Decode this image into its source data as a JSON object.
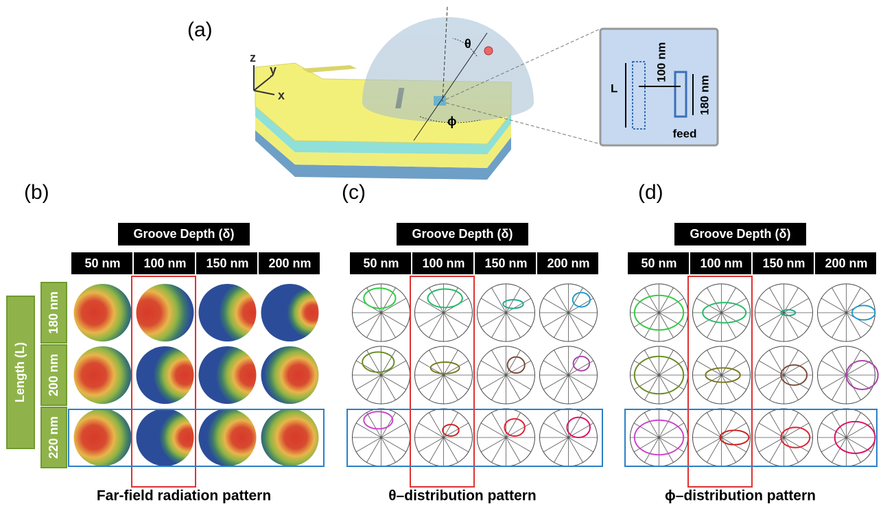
{
  "panel_a": {
    "label": "(a)",
    "axes": [
      "z",
      "y",
      "x"
    ],
    "theta": "θ",
    "phi": "ϕ",
    "inset": {
      "length": "L",
      "gap": "100 nm",
      "feed_length": "180 nm",
      "feed": "feed"
    }
  },
  "panels": [
    {
      "label": "(b)",
      "header": "Groove Depth (δ)",
      "columns": [
        "50 nm",
        "100 nm",
        "150 nm",
        "200 nm"
      ],
      "caption": "Far-field radiation pattern"
    },
    {
      "label": "(c)",
      "header": "Groove Depth (δ)",
      "columns": [
        "50 nm",
        "100 nm",
        "150 nm",
        "200 nm"
      ],
      "caption": "θ–distribution pattern"
    },
    {
      "label": "(d)",
      "header": "Groove Depth (δ)",
      "columns": [
        "50 nm",
        "100 nm",
        "150 nm",
        "200 nm"
      ],
      "caption": "ϕ–distribution pattern"
    }
  ],
  "rows": {
    "title": "Length (L)",
    "labels": [
      "180 nm",
      "200 nm",
      "220 nm"
    ]
  }
}
